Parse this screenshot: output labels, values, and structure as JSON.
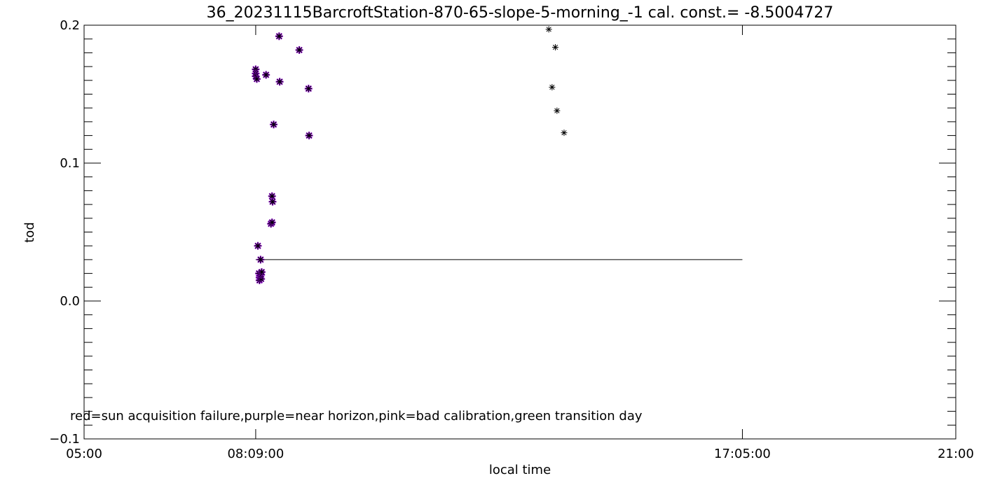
{
  "chart_data": {
    "type": "scatter",
    "title": "36_20231115BarcroftStation-870-65-slope-5-morning_-1 cal. const.= -8.5004727",
    "xlabel": "local time",
    "ylabel": "tod",
    "x_unit": "hours",
    "xlim": [
      5.0,
      21.0
    ],
    "ylim": [
      -0.1,
      0.2
    ],
    "x_ticks": [
      {
        "value": 5.0,
        "label": "05:00"
      },
      {
        "value": 8.15,
        "label": "08:09:00"
      },
      {
        "value": 17.0833,
        "label": "17:05:00"
      },
      {
        "value": 21.0,
        "label": "21:00"
      }
    ],
    "y_ticks": [
      {
        "value": -0.1,
        "label": "−0.1"
      },
      {
        "value": 0.0,
        "label": "0.0"
      },
      {
        "value": 0.1,
        "label": "0.1"
      },
      {
        "value": 0.2,
        "label": "0.2"
      }
    ],
    "grid": false,
    "reference_line": {
      "y": 0.03,
      "x_start": 8.15,
      "x_end": 17.0833
    },
    "legend_note": "red=sun acquisition failure,purple=near horizon,pink=bad calibration,green transition day",
    "colors": {
      "black": "#000000",
      "purple": "#7b00b4"
    },
    "series": [
      {
        "marker": "asterisk",
        "color": "#000000",
        "flag_color": "#7b00b4",
        "points": [
          {
            "x": 8.15,
            "y": 0.168,
            "flag": "purple"
          },
          {
            "x": 8.15,
            "y": 0.165,
            "flag": "purple"
          },
          {
            "x": 8.15,
            "y": 0.163,
            "flag": "purple"
          },
          {
            "x": 8.17,
            "y": 0.161,
            "flag": "purple"
          },
          {
            "x": 8.19,
            "y": 0.04,
            "flag": "purple"
          },
          {
            "x": 8.21,
            "y": 0.02,
            "flag": "purple"
          },
          {
            "x": 8.22,
            "y": 0.017,
            "flag": "purple"
          },
          {
            "x": 8.22,
            "y": 0.015,
            "flag": "purple"
          },
          {
            "x": 8.25,
            "y": 0.016,
            "flag": "purple"
          },
          {
            "x": 8.25,
            "y": 0.019,
            "flag": "purple"
          },
          {
            "x": 8.26,
            "y": 0.021,
            "flag": "purple"
          },
          {
            "x": 8.24,
            "y": 0.03,
            "flag": "purple"
          },
          {
            "x": 8.34,
            "y": 0.164,
            "flag": "purple"
          },
          {
            "x": 8.43,
            "y": 0.056,
            "flag": "purple"
          },
          {
            "x": 8.45,
            "y": 0.057,
            "flag": "purple"
          },
          {
            "x": 8.45,
            "y": 0.076,
            "flag": "purple"
          },
          {
            "x": 8.46,
            "y": 0.072,
            "flag": "purple"
          },
          {
            "x": 8.48,
            "y": 0.128,
            "flag": "purple"
          },
          {
            "x": 8.58,
            "y": 0.192,
            "flag": "purple"
          },
          {
            "x": 8.59,
            "y": 0.159,
            "flag": "purple"
          },
          {
            "x": 8.95,
            "y": 0.182,
            "flag": "purple"
          },
          {
            "x": 9.12,
            "y": 0.154,
            "flag": "purple"
          },
          {
            "x": 9.13,
            "y": 0.12,
            "flag": "purple"
          },
          {
            "x": 13.53,
            "y": 0.197,
            "flag": ""
          },
          {
            "x": 13.65,
            "y": 0.184,
            "flag": ""
          },
          {
            "x": 13.59,
            "y": 0.155,
            "flag": ""
          },
          {
            "x": 13.68,
            "y": 0.138,
            "flag": ""
          },
          {
            "x": 13.81,
            "y": 0.122,
            "flag": ""
          }
        ]
      }
    ]
  }
}
